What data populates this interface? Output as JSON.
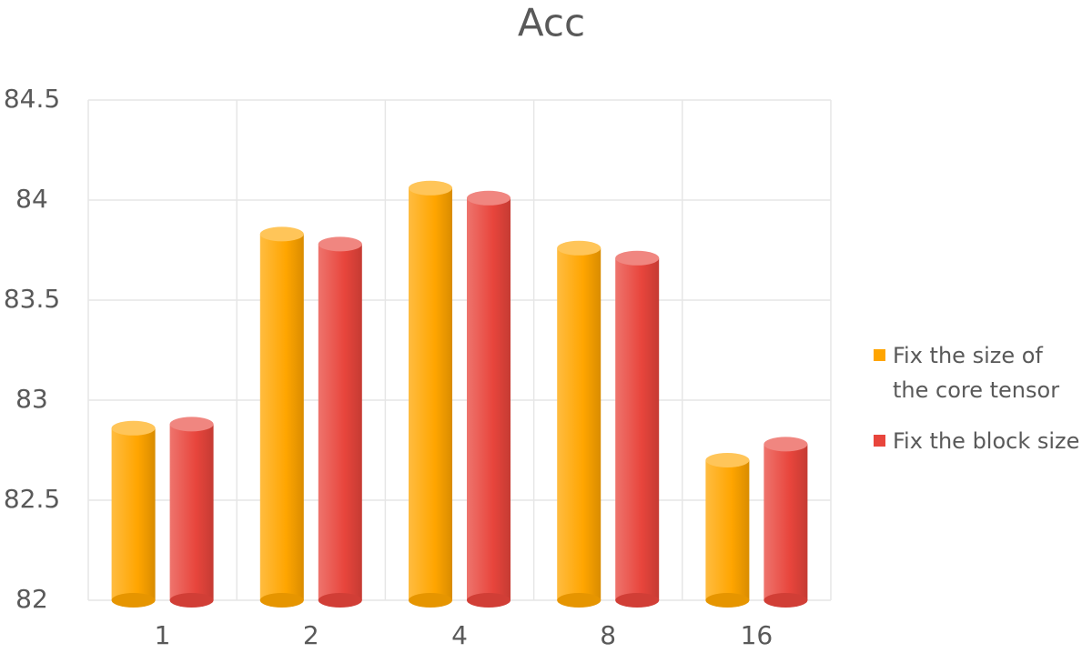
{
  "chart_data": {
    "type": "bar",
    "title": "Acc",
    "categories": [
      "1",
      "2",
      "4",
      "8",
      "16"
    ],
    "series": [
      {
        "name": "Fix the size of the core tensor",
        "color": "#ffa500",
        "values": [
          82.86,
          83.83,
          84.06,
          83.76,
          82.7
        ]
      },
      {
        "name": "Fix the block size",
        "color": "#e8453c",
        "values": [
          82.88,
          83.78,
          84.01,
          83.71,
          82.78
        ]
      }
    ],
    "ylim": [
      82,
      84.5
    ],
    "yticks": [
      82,
      82.5,
      83,
      83.5,
      84,
      84.5
    ],
    "grid": true,
    "legend": "right"
  }
}
